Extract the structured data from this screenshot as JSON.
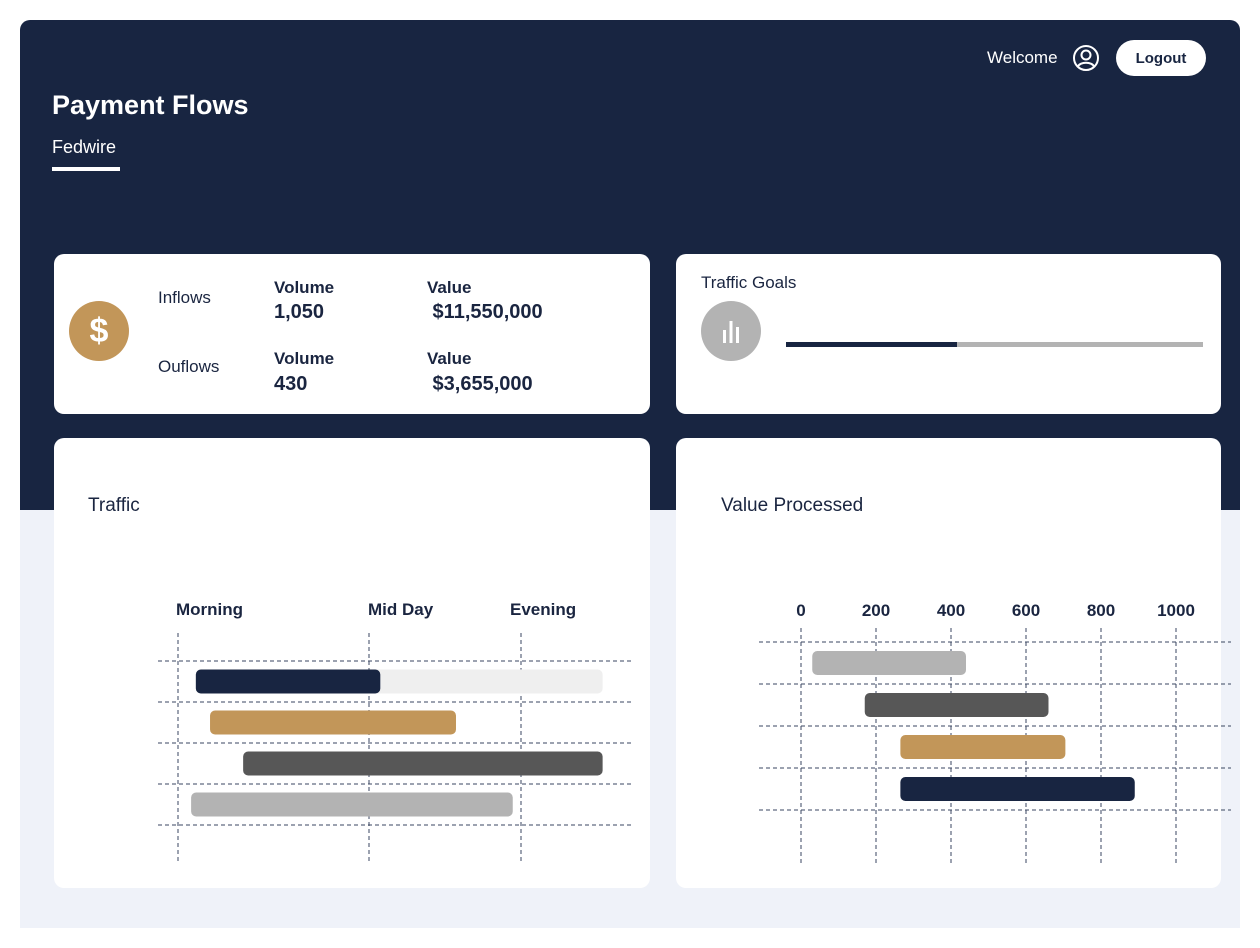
{
  "header": {
    "welcome": "Welcome",
    "logout_label": "Logout",
    "title": "Payment Flows",
    "tabs": [
      {
        "label": "Fedwire",
        "active": true
      }
    ]
  },
  "flows": {
    "icon": "dollar-icon",
    "symbol": "$",
    "inflows": {
      "label": "Inflows",
      "volume_label": "Volume",
      "volume": "1,050",
      "value_label": "Value",
      "value": " $11,550,000"
    },
    "outflows": {
      "label": "Ouflows",
      "volume_label": "Volume",
      "volume": "430",
      "value_label": "Value",
      "value": " $3,655,000"
    }
  },
  "goals": {
    "title": "Traffic Goals",
    "icon": "bar-chart-icon",
    "progress": 0.41
  },
  "colors": {
    "navy": "#182541",
    "gold": "#c29659",
    "dark_gray": "#575757",
    "light_gray": "#b3b3b3",
    "track": "#efefef",
    "background": "#eff2f9"
  },
  "chart_data": [
    {
      "type": "bar",
      "orientation": "horizontal",
      "title": "Traffic",
      "x_ticks": [
        "Morning",
        "Mid Day",
        "Evening"
      ],
      "grid": true,
      "bars": [
        {
          "start": 0.08,
          "end": 0.47,
          "color": "#182541",
          "track_end": 0.94
        },
        {
          "start": 0.11,
          "end": 0.63,
          "color": "#c29659"
        },
        {
          "start": 0.18,
          "end": 0.94,
          "color": "#575757"
        },
        {
          "start": 0.07,
          "end": 0.75,
          "color": "#b3b3b3"
        }
      ]
    },
    {
      "type": "bar",
      "orientation": "horizontal",
      "title": "Value Processed",
      "x_ticks": [
        "0",
        "200",
        "400",
        "600",
        "800",
        "1000"
      ],
      "xlim": [
        0,
        1000
      ],
      "grid": true,
      "bars": [
        {
          "start": 30,
          "end": 440,
          "color": "#b3b3b3"
        },
        {
          "start": 170,
          "end": 660,
          "color": "#575757"
        },
        {
          "start": 265,
          "end": 705,
          "color": "#c29659"
        },
        {
          "start": 265,
          "end": 890,
          "color": "#182541"
        }
      ]
    }
  ]
}
